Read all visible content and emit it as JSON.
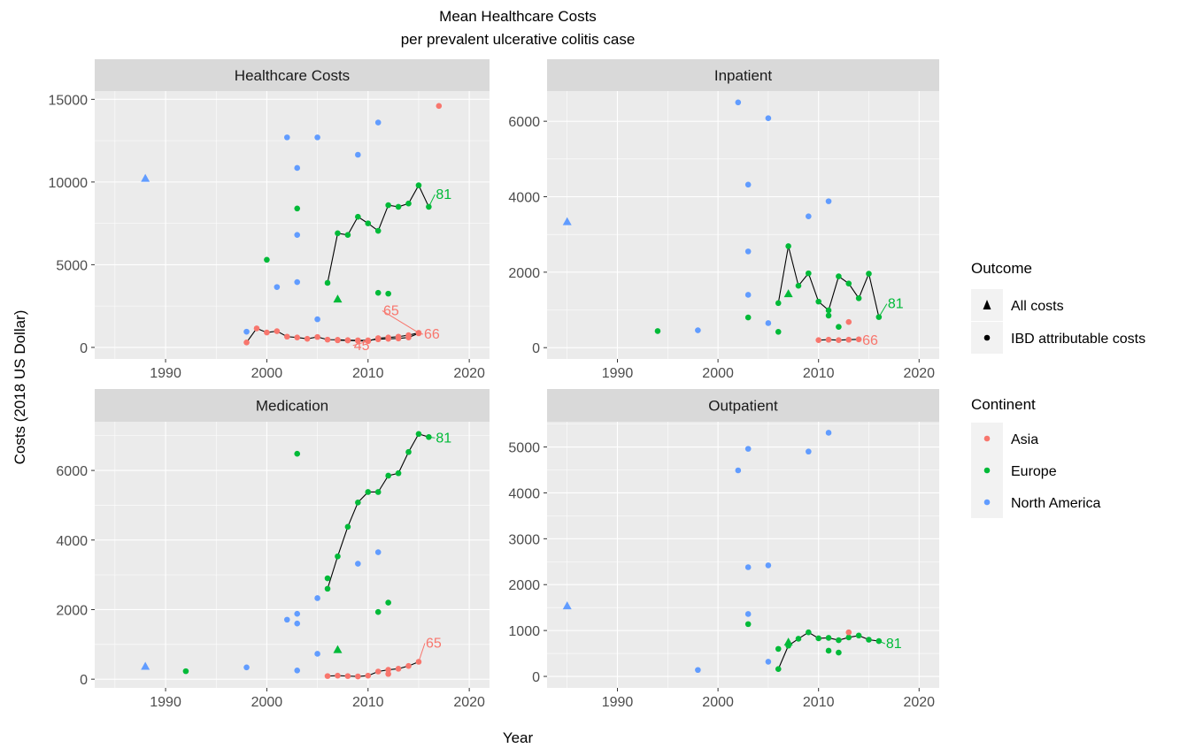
{
  "title_line1": "Mean Healthcare Costs",
  "title_line2": "per prevalent ulcerative colitis case",
  "xlabel": "Year",
  "ylabel": "Costs (2018 US Dollar)",
  "colors": {
    "Asia": "#F8766D",
    "Europe": "#00BA38",
    "North America": "#619CFF",
    "line": "#000000"
  },
  "legend": {
    "outcome_title": "Outcome",
    "outcome_items": [
      {
        "label": "All costs",
        "shape": "triangle"
      },
      {
        "label": "IBD attributable costs",
        "shape": "circle"
      }
    ],
    "continent_title": "Continent",
    "continent_items": [
      {
        "label": "Asia",
        "color_key": "Asia"
      },
      {
        "label": "Europe",
        "color_key": "Europe"
      },
      {
        "label": "North America",
        "color_key": "North America"
      }
    ]
  },
  "chart_data": [
    {
      "type": "scatter",
      "panel": "Healthcare Costs",
      "xlim": [
        1983,
        2022
      ],
      "ylim": [
        -700,
        15500
      ],
      "xticks": [
        1990,
        2000,
        2010,
        2020
      ],
      "yticks": [
        0,
        5000,
        10000,
        15000
      ],
      "points": [
        {
          "x": 1988,
          "y": 10200,
          "c": "North America",
          "s": "triangle"
        },
        {
          "x": 1998,
          "y": 950,
          "c": "North America",
          "s": "circle"
        },
        {
          "x": 2001,
          "y": 3650,
          "c": "North America",
          "s": "circle"
        },
        {
          "x": 2002,
          "y": 12700,
          "c": "North America",
          "s": "circle"
        },
        {
          "x": 2003,
          "y": 10850,
          "c": "North America",
          "s": "circle"
        },
        {
          "x": 2003,
          "y": 6800,
          "c": "North America",
          "s": "circle"
        },
        {
          "x": 2003,
          "y": 3950,
          "c": "North America",
          "s": "circle"
        },
        {
          "x": 2005,
          "y": 12700,
          "c": "North America",
          "s": "circle"
        },
        {
          "x": 2005,
          "y": 1700,
          "c": "North America",
          "s": "circle"
        },
        {
          "x": 2009,
          "y": 11650,
          "c": "North America",
          "s": "circle"
        },
        {
          "x": 2011,
          "y": 13600,
          "c": "North America",
          "s": "circle"
        },
        {
          "x": 2000,
          "y": 5300,
          "c": "Europe",
          "s": "circle"
        },
        {
          "x": 2003,
          "y": 8400,
          "c": "Europe",
          "s": "circle"
        },
        {
          "x": 2007,
          "y": 2900,
          "c": "Europe",
          "s": "triangle"
        },
        {
          "x": 2011,
          "y": 3300,
          "c": "Europe",
          "s": "circle"
        },
        {
          "x": 2012,
          "y": 3250,
          "c": "Europe",
          "s": "circle"
        },
        {
          "x": 2017,
          "y": 14600,
          "c": "Asia",
          "s": "circle"
        }
      ],
      "lines": [
        {
          "c": "Europe",
          "label": "81",
          "x": [
            2006,
            2007,
            2008,
            2009,
            2010,
            2011,
            2012,
            2013,
            2014,
            2015,
            2016
          ],
          "y": [
            3900,
            6900,
            6800,
            7900,
            7500,
            7050,
            8600,
            8500,
            8700,
            9800,
            8500
          ]
        },
        {
          "c": "Asia",
          "label": "66",
          "x": [
            1998,
            1999,
            2000,
            2001,
            2002,
            2003,
            2004,
            2005,
            2006,
            2007,
            2008,
            2009,
            2010,
            2011,
            2012,
            2013,
            2014,
            2015
          ],
          "y": [
            300,
            1150,
            900,
            980,
            650,
            600,
            520,
            630,
            470,
            460,
            440,
            430,
            430,
            490,
            520,
            540,
            600,
            850
          ]
        },
        {
          "c": "Asia",
          "label": "65",
          "x": [
            2010,
            2011,
            2012,
            2013,
            2014,
            2015
          ],
          "y": [
            380,
            560,
            600,
            650,
            740,
            880
          ]
        },
        {
          "c": "Asia",
          "label": "45",
          "x": [
            2007,
            2008,
            2009,
            2010
          ],
          "y": [
            430,
            420,
            400,
            380
          ]
        }
      ]
    },
    {
      "type": "scatter",
      "panel": "Inpatient",
      "xlim": [
        1983,
        2022
      ],
      "ylim": [
        -300,
        6800
      ],
      "xticks": [
        1990,
        2000,
        2010,
        2020
      ],
      "yticks": [
        0,
        2000,
        4000,
        6000
      ],
      "points": [
        {
          "x": 1985,
          "y": 3330,
          "c": "North America",
          "s": "triangle"
        },
        {
          "x": 1998,
          "y": 460,
          "c": "North America",
          "s": "circle"
        },
        {
          "x": 2002,
          "y": 6500,
          "c": "North America",
          "s": "circle"
        },
        {
          "x": 2003,
          "y": 4320,
          "c": "North America",
          "s": "circle"
        },
        {
          "x": 2003,
          "y": 2550,
          "c": "North America",
          "s": "circle"
        },
        {
          "x": 2003,
          "y": 1400,
          "c": "North America",
          "s": "circle"
        },
        {
          "x": 2005,
          "y": 6080,
          "c": "North America",
          "s": "circle"
        },
        {
          "x": 2005,
          "y": 650,
          "c": "North America",
          "s": "circle"
        },
        {
          "x": 2009,
          "y": 3480,
          "c": "North America",
          "s": "circle"
        },
        {
          "x": 2011,
          "y": 3880,
          "c": "North America",
          "s": "circle"
        },
        {
          "x": 1994,
          "y": 440,
          "c": "Europe",
          "s": "circle"
        },
        {
          "x": 2003,
          "y": 800,
          "c": "Europe",
          "s": "circle"
        },
        {
          "x": 2006,
          "y": 420,
          "c": "Europe",
          "s": "circle"
        },
        {
          "x": 2007,
          "y": 1420,
          "c": "Europe",
          "s": "triangle"
        },
        {
          "x": 2011,
          "y": 850,
          "c": "Europe",
          "s": "circle"
        },
        {
          "x": 2012,
          "y": 550,
          "c": "Europe",
          "s": "circle"
        },
        {
          "x": 2013,
          "y": 680,
          "c": "Asia",
          "s": "circle"
        }
      ],
      "lines": [
        {
          "c": "Europe",
          "label": "81",
          "x": [
            2006,
            2007,
            2008,
            2009,
            2010,
            2011,
            2012,
            2013,
            2014,
            2015,
            2016
          ],
          "y": [
            1180,
            2690,
            1640,
            1970,
            1220,
            990,
            1890,
            1700,
            1310,
            1960,
            810
          ]
        },
        {
          "c": "Asia",
          "label": "66",
          "x": [
            2010,
            2011,
            2012,
            2013,
            2014
          ],
          "y": [
            200,
            210,
            200,
            210,
            220
          ]
        }
      ]
    },
    {
      "type": "scatter",
      "panel": "Medication",
      "xlim": [
        1983,
        2022
      ],
      "ylim": [
        -250,
        7400
      ],
      "xticks": [
        1990,
        2000,
        2010,
        2020
      ],
      "yticks": [
        0,
        2000,
        4000,
        6000
      ],
      "points": [
        {
          "x": 1988,
          "y": 360,
          "c": "North America",
          "s": "triangle"
        },
        {
          "x": 1998,
          "y": 340,
          "c": "North America",
          "s": "circle"
        },
        {
          "x": 2002,
          "y": 1710,
          "c": "North America",
          "s": "circle"
        },
        {
          "x": 2003,
          "y": 1880,
          "c": "North America",
          "s": "circle"
        },
        {
          "x": 2003,
          "y": 1600,
          "c": "North America",
          "s": "circle"
        },
        {
          "x": 2003,
          "y": 250,
          "c": "North America",
          "s": "circle"
        },
        {
          "x": 2005,
          "y": 2330,
          "c": "North America",
          "s": "circle"
        },
        {
          "x": 2005,
          "y": 730,
          "c": "North America",
          "s": "circle"
        },
        {
          "x": 2009,
          "y": 3320,
          "c": "North America",
          "s": "circle"
        },
        {
          "x": 2011,
          "y": 3650,
          "c": "North America",
          "s": "circle"
        },
        {
          "x": 1992,
          "y": 230,
          "c": "Europe",
          "s": "circle"
        },
        {
          "x": 2003,
          "y": 6480,
          "c": "Europe",
          "s": "circle"
        },
        {
          "x": 2006,
          "y": 2900,
          "c": "Europe",
          "s": "circle"
        },
        {
          "x": 2007,
          "y": 840,
          "c": "Europe",
          "s": "triangle"
        },
        {
          "x": 2011,
          "y": 1930,
          "c": "Europe",
          "s": "circle"
        },
        {
          "x": 2012,
          "y": 2200,
          "c": "Europe",
          "s": "circle"
        },
        {
          "x": 2012,
          "y": 150,
          "c": "Asia",
          "s": "circle"
        }
      ],
      "lines": [
        {
          "c": "Europe",
          "label": "81",
          "x": [
            2006,
            2007,
            2008,
            2009,
            2010,
            2011,
            2012,
            2013,
            2014,
            2015,
            2016
          ],
          "y": [
            2600,
            3530,
            4380,
            5080,
            5380,
            5380,
            5850,
            5920,
            6530,
            7050,
            6960
          ]
        },
        {
          "c": "Asia",
          "label": "65",
          "x": [
            2006,
            2007,
            2008,
            2009,
            2010,
            2011,
            2012,
            2013,
            2014,
            2015
          ],
          "y": [
            90,
            100,
            90,
            80,
            100,
            220,
            270,
            300,
            380,
            500
          ]
        }
      ]
    },
    {
      "type": "scatter",
      "panel": "Outpatient",
      "xlim": [
        1983,
        2022
      ],
      "ylim": [
        -250,
        5550
      ],
      "xticks": [
        1990,
        2000,
        2010,
        2020
      ],
      "yticks": [
        0,
        1000,
        2000,
        3000,
        4000,
        5000
      ],
      "points": [
        {
          "x": 1985,
          "y": 1530,
          "c": "North America",
          "s": "triangle"
        },
        {
          "x": 1998,
          "y": 140,
          "c": "North America",
          "s": "circle"
        },
        {
          "x": 2002,
          "y": 4490,
          "c": "North America",
          "s": "circle"
        },
        {
          "x": 2003,
          "y": 4960,
          "c": "North America",
          "s": "circle"
        },
        {
          "x": 2003,
          "y": 2380,
          "c": "North America",
          "s": "circle"
        },
        {
          "x": 2003,
          "y": 1360,
          "c": "North America",
          "s": "circle"
        },
        {
          "x": 2005,
          "y": 2420,
          "c": "North America",
          "s": "circle"
        },
        {
          "x": 2005,
          "y": 320,
          "c": "North America",
          "s": "circle"
        },
        {
          "x": 2009,
          "y": 4900,
          "c": "North America",
          "s": "circle"
        },
        {
          "x": 2011,
          "y": 5310,
          "c": "North America",
          "s": "circle"
        },
        {
          "x": 2003,
          "y": 1140,
          "c": "Europe",
          "s": "circle"
        },
        {
          "x": 2006,
          "y": 600,
          "c": "Europe",
          "s": "circle"
        },
        {
          "x": 2007,
          "y": 740,
          "c": "Europe",
          "s": "triangle"
        },
        {
          "x": 2011,
          "y": 560,
          "c": "Europe",
          "s": "circle"
        },
        {
          "x": 2012,
          "y": 520,
          "c": "Europe",
          "s": "circle"
        },
        {
          "x": 2013,
          "y": 960,
          "c": "Asia",
          "s": "circle"
        }
      ],
      "lines": [
        {
          "c": "Europe",
          "label": "81",
          "x": [
            2006,
            2007,
            2008,
            2009,
            2010,
            2011,
            2012,
            2013,
            2014,
            2015,
            2016
          ],
          "y": [
            160,
            670,
            820,
            960,
            830,
            840,
            790,
            850,
            890,
            800,
            770
          ]
        }
      ]
    }
  ]
}
